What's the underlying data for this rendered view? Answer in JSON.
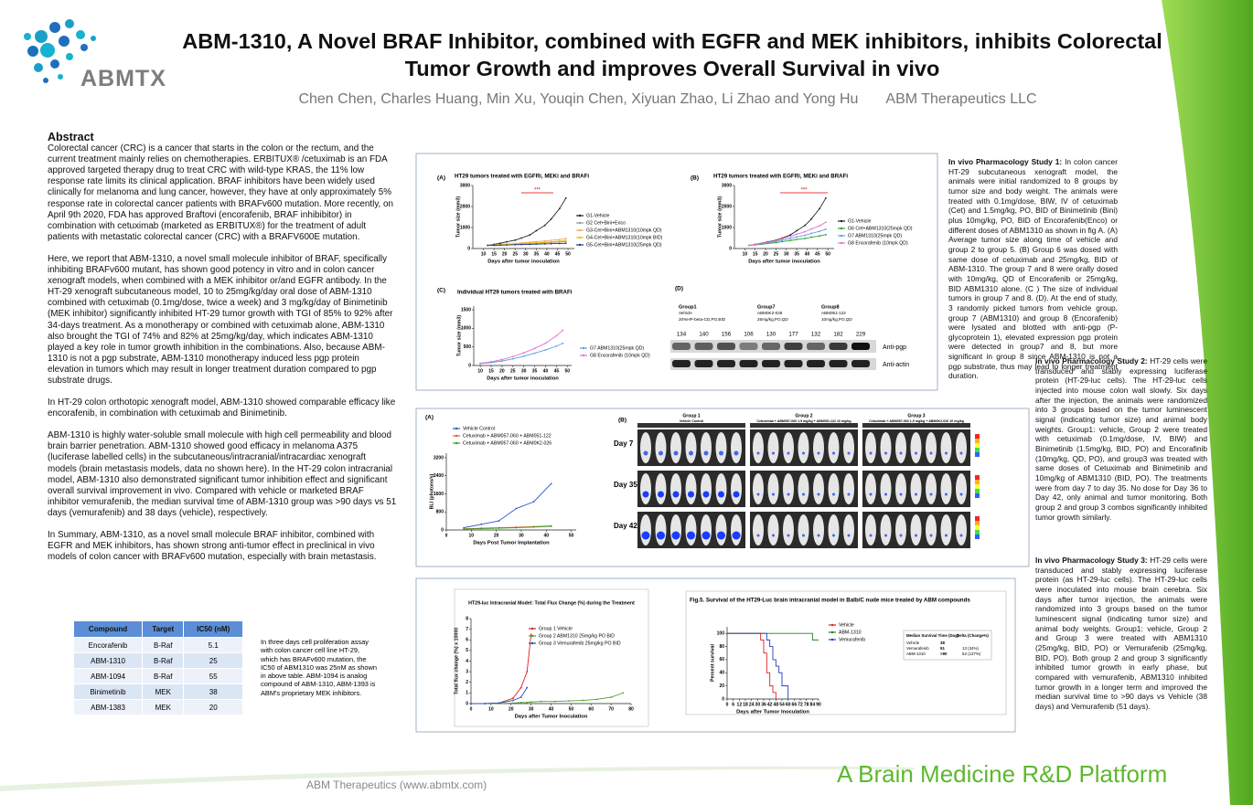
{
  "logo": "ABMTX",
  "header": {
    "title": "ABM-1310, A Novel BRAF Inhibitor, combined with EGFR and MEK inhibitors, inhibits Colorectal Tumor Growth and improves Overall Survival in vivo",
    "authors": "Chen Chen, Charles Huang, Min Xu, Youqin Chen, Xiyuan Zhao, Li Zhao and Yong Hu",
    "affiliation": "ABM Therapeutics LLC"
  },
  "abstract": {
    "heading": "Abstract",
    "paragraphs": [
      "Colorectal cancer (CRC) is a cancer that starts in the colon or the rectum, and the current treatment mainly relies on chemotherapies. ERBITUX® /cetuximab is an FDA approved targeted therapy drug to treat CRC with wild-type KRAS, the 11% low response rate limits its clinical application. BRAF inhibitors have been widely used clinically for melanoma and lung cancer, however, they have at only approximately 5% response rate in colorectal cancer patients with BRAFv600 mutation. More recently, on April 9th 2020, FDA has approved Braftovi (encorafenib, BRAF inhibibitor) in combination with cetuximab (marketed as ERBITUX®) for the treatment of adult patients with metastatic colorectal cancer (CRC) with a BRAFV600E mutation.",
      "Here, we report that ABM-1310, a novel small molecule inhibitor of BRAF, specifically inhibiting BRAFv600 mutant, has shown good potency in vitro and in colon cancer xenograft models, when combined with a MEK inhibitor or/and EGFR antibody. In the HT-29 xenograft subcutaneous model, 10 to 25mg/kg/day oral dose of ABM-1310 combined with cetuximab (0.1mg/dose, twice a week) and 3 mg/kg/day of Binimetinib (MEK inhibitor) significantly inhibited HT-29 tumor growth with TGI of 85% to 92% after 34-days treatment. As a monotherapy or combined with cetuximab alone, ABM-1310 also brought the TGI of 74% and 82% at 25mg/kg/day, which indicates ABM-1310 played a key role in tumor growth inhibition in the combinations. Also, because ABM-1310 is not a pgp substrate, ABM-1310 monotherapy induced less pgp protein elevation in tumors which may result in longer treatment duration compared to pgp substrate drugs.",
      "In HT-29 colon orthotopic xenograft model, ABM-1310 showed comparable efficacy like encorafenib, in combination with cetuximab and Binimetinib.",
      "ABM-1310 is highly water-soluble small molecule with high cell permeability and blood brain barrier penetration. ABM-1310 showed good efficacy in melanoma A375 (luciferase labelled cells) in the subcutaneous/intracranial/intracardiac xenograft models (brain metastasis models, data no shown here). In the HT-29 colon intracranial model, ABM-1310 also demonstrated significant tumor inhibition effect and significant overall survival improvement in vivo. Compared with vehicle or marketed BRAF inhibitor vemurafenib, the median survival time of ABM-1310 group was >90 days vs 51 days (vemurafenib) and 38 days (vehicle), respectively.",
      "In Summary, ABM-1310, as a novel small molecule BRAF inhibitor, combined with EGFR and MEK inhibitors, has shown strong anti-tumor effect in preclinical in vivo models of colon cancer with BRAFv600 mutation, especially with brain metastasis."
    ]
  },
  "table": {
    "columns": [
      "Compound",
      "Target",
      "IC50 (nM)"
    ],
    "rows": [
      [
        "Encorafenib",
        "B-Raf",
        "5.1"
      ],
      [
        "ABM-1310",
        "B-Raf",
        "25"
      ],
      [
        "ABM-1094",
        "B-Raf",
        "55"
      ],
      [
        "Binimetinib",
        "MEK",
        "38"
      ],
      [
        "ABM-1383",
        "MEK",
        "20"
      ]
    ],
    "note": "In three days cell proliferation assay with colon cancer cell line HT-29, which has BRAFv600 mutation, the IC50 of ABM1310 was 25nM as shown in above table. ABM-1094 is analog compound of ABM-1310, ABM-1393 is ABM's proprietary MEK inhibitors."
  },
  "studies": [
    {
      "label": "In vivo Pharmacology Study 1:",
      "text": "In colon cancer HT-29 subcutaneous xenograft model, the animals were initial randomized to 8 groups by tumor size and body weight. The animals were treated with 0.1mg/dose, BIW, IV of cetuximab (Cet) and 1.5mg/kg, PO, BID of Binimetinib (Bini) plus 10mg/kg, PO, BID of Encorafenib(Enco) or different doses of ABM1310 as shown in fig A. (A) Average tumor size along time of vehicle and group 2 to group 5. (B) Group 6 was dosed with same dose of cetuximab and 25mg/kg, BID of ABM-1310. The group 7 and 8 were orally dosed with 10mg/kg, QD of Encorafenib or 25mg/kg, BID ABM1310 alone. (C ) The size of individual tumors in group 7 and 8. (D). At the end of study, 3 randomly picked tumors from vehicle group, group 7 (ABM1310) and group 8 (Encorafenib) were lysated and blotted with anti-pgp (P-glycoprotein 1), elevated expression pgp protein were detected in group7 and 8, but more significant in group 8 since ABM-1310 is not a pgp substrate, thus may lead to longer treatment duration."
    },
    {
      "label": "In vivo Pharmacology Study 2:",
      "text": "HT-29 cells were transduced and stably expressing luciferase protein (HT-29-luc cells). The HT-29-luc cells injected into mouse colon wall slowly. Six days after the injection, the animals were randomized into 3 groups based on the tumor luminescent signal (indicating tumor size) and animal body weights. Group1: vehicle, Group 2 were treated with cetuximab (0.1mg/dose, IV, BIW) and Binimetinib (1.5mg/kg, BID, PO) and Encorafinib (10mg/kg, QD, PO), and group3 was treated with same doses of Cetuximab and Binimetinib and 10mg/kg of ABM1310 (BID, PO). The treatments were from day 7 to day 35. No dose for Day 36 to Day 42, only animal and tumor monitoring. Both group 2 and group 3 combos significantly inhibited tumor growth similarly."
    },
    {
      "label": "In vivo Pharmacology Study 3:",
      "text": "HT-29 cells were transduced and stably expressing luciferase protein (as HT-29-luc cells). The HT-29-luc cells were inoculated into mouse brain cerebra. Six days after tumor injection, the animals were randomized into 3 groups based on the tumor luminescent signal (indicating tumor size) and animal body weights. Group1: vehicle, Group 2 and Group 3 were treated with ABM1310 (25mg/kg, BID, PO) or Vemurafenib (25mg/kg, BID, PO). Both group 2 and group 3 significantly inhibited tumor growth in early phase, but compared with vemurafenib, ABM1310 inhibited tumor growth in a longer term and improved the median survival time to >90 days vs Vehicle (38 days) and Vemurafenib (51 days)."
    }
  ],
  "chart_data": [
    {
      "type": "line",
      "panel": "(A)",
      "title": "HT29 tumors treated with EGFRi, MEKi and BRAFi",
      "xlabel": "Days after tumor inoculation",
      "ylabel": "Tumor size (mm3)",
      "annotation": "***",
      "x": [
        12,
        15,
        18,
        21,
        25,
        28,
        32,
        35,
        39,
        42,
        46,
        49
      ],
      "xlim": [
        5,
        53
      ],
      "xticks": [
        10,
        15,
        20,
        25,
        30,
        35,
        40,
        45,
        50
      ],
      "ylim": [
        0,
        3000
      ],
      "yticks": [
        0,
        1000,
        2000,
        3000
      ],
      "series": [
        {
          "name": "G1-Vehicle",
          "color": "#222222",
          "values": [
            150,
            200,
            250,
            320,
            400,
            500,
            650,
            850,
            1100,
            1400,
            1900,
            2400
          ]
        },
        {
          "name": "G2 Cet+Bini+Enco",
          "color": "#999999",
          "values": [
            150,
            160,
            170,
            180,
            200,
            220,
            230,
            250,
            270,
            290,
            310,
            330
          ]
        },
        {
          "name": "G3-Cet+Bini+ABM1310(10mpk QD)",
          "color": "#f4a460",
          "values": [
            150,
            170,
            190,
            210,
            240,
            270,
            300,
            330,
            360,
            390,
            430,
            470
          ]
        },
        {
          "name": "G4-Cet+Bini+ABM1310(10mpk BID)",
          "color": "#e8c000",
          "values": [
            150,
            160,
            180,
            200,
            220,
            240,
            260,
            280,
            300,
            320,
            350,
            380
          ]
        },
        {
          "name": "G5-Cet+Bini+ABM1310(25mpk QD)",
          "color": "#1f3c88",
          "values": [
            150,
            150,
            160,
            170,
            180,
            190,
            200,
            210,
            220,
            230,
            240,
            250
          ]
        }
      ]
    },
    {
      "type": "line",
      "panel": "(B)",
      "title": "HT29 tumors treated with EGFRi, MEKi and BRAFi",
      "xlabel": "Days after tumor inoculation",
      "ylabel": "Tumor size (mm3)",
      "annotation": "***",
      "x": [
        12,
        15,
        18,
        21,
        25,
        28,
        32,
        35,
        39,
        42,
        46,
        49
      ],
      "xlim": [
        5,
        53
      ],
      "xticks": [
        10,
        15,
        20,
        25,
        30,
        35,
        40,
        45,
        50
      ],
      "ylim": [
        0,
        3000
      ],
      "yticks": [
        0,
        1000,
        2000,
        3000
      ],
      "series": [
        {
          "name": "G1-Vehicle",
          "color": "#222222",
          "values": [
            150,
            200,
            250,
            320,
            400,
            500,
            650,
            850,
            1100,
            1400,
            1900,
            2400
          ]
        },
        {
          "name": "G6 Cet+ABM1310(25mpk QD)",
          "color": "#2ca02c",
          "values": [
            150,
            170,
            200,
            240,
            280,
            330,
            380,
            430,
            480,
            540,
            600,
            660
          ]
        },
        {
          "name": "G7 ABM1310(25mpk QD)",
          "color": "#5aa0e0",
          "values": [
            150,
            180,
            220,
            270,
            330,
            400,
            470,
            550,
            630,
            720,
            820,
            920
          ]
        },
        {
          "name": "G8 Encorafenib (10mpk QD)",
          "color": "#e070d0",
          "values": [
            150,
            190,
            240,
            300,
            380,
            470,
            570,
            680,
            800,
            930,
            1080,
            1250
          ]
        }
      ]
    },
    {
      "type": "line",
      "panel": "(C)",
      "title": "Individual HT29 tumors treated with BRAFi",
      "xlabel": "Days after tumor inoculation",
      "ylabel": "Tumor size (mm3)",
      "x": [
        10,
        15,
        20,
        25,
        30,
        35,
        40,
        45,
        48
      ],
      "xlim": [
        7,
        52
      ],
      "xticks": [
        10,
        15,
        20,
        25,
        30,
        35,
        40,
        45,
        50
      ],
      "ylim": [
        0,
        1600
      ],
      "yticks": [
        0,
        500,
        1000,
        1500
      ],
      "series": [
        {
          "name": "G7 ABM1310(25mpk QD)",
          "color": "#5aa0e0",
          "values": [
            50,
            80,
            120,
            180,
            250,
            330,
            420,
            520,
            600
          ]
        },
        {
          "name": "G8 Encorafenib (10mpk QD)",
          "color": "#e070d0",
          "values": [
            60,
            100,
            160,
            240,
            340,
            460,
            600,
            800,
            950
          ]
        }
      ]
    },
    {
      "type": "line",
      "panel": "(A)",
      "xlabel": "Days Post Tumor Implantation",
      "ylabel": "BLI (photons/s)",
      "x": [
        7,
        14,
        21,
        28,
        35,
        42
      ],
      "xlim": [
        0,
        52
      ],
      "xticks": [
        0,
        10,
        20,
        30,
        40,
        50
      ],
      "ylim": [
        0,
        3400
      ],
      "yticks": [
        0,
        800,
        1600,
        2400,
        3200
      ],
      "series": [
        {
          "name": "Vehicle Control",
          "color": "#3355cc",
          "values": [
            100,
            250,
            400,
            950,
            1250,
            2050
          ]
        },
        {
          "name": "Cetuximab + ABM057-060 + ABM051-122",
          "color": "#e06020",
          "values": [
            50,
            80,
            100,
            120,
            150,
            180
          ]
        },
        {
          "name": "Cetuximab + ABM057-060 + ABM0K2-026",
          "color": "#30a030",
          "values": [
            40,
            60,
            80,
            100,
            130,
            160
          ]
        }
      ]
    },
    {
      "type": "line",
      "title": "HT29-luc Intracranial Model: Total Flux Change (%) during the Treatment",
      "xlabel": "Days after Tumor Inoculation",
      "ylabel": "Total flux change (%) x 10000",
      "x": [
        0,
        7,
        14,
        21,
        25,
        28,
        30,
        35,
        42,
        49,
        56,
        63,
        70,
        76
      ],
      "xlim": [
        0,
        80
      ],
      "xticks": [
        0,
        10,
        20,
        30,
        40,
        50,
        60,
        70,
        80
      ],
      "ylim": [
        0,
        8
      ],
      "yticks": [
        0,
        1,
        2,
        3,
        4,
        5,
        6,
        7,
        8
      ],
      "series": [
        {
          "name": "Group 1 Vehicle",
          "color": "#e02020",
          "values": [
            0,
            0,
            0.05,
            0.5,
            1.5,
            3,
            6.5,
            null,
            null,
            null,
            null,
            null,
            null,
            null
          ]
        },
        {
          "name": "Group 2 ABM1310 25mg/kg PO BID",
          "color": "#50a030",
          "values": [
            0,
            0,
            0,
            0.05,
            0.1,
            0.1,
            0.15,
            0.2,
            0.2,
            0.25,
            0.3,
            0.4,
            0.6,
            1
          ]
        },
        {
          "name": "Group 3 Vemurafenib 25mg/kg PO BID",
          "color": "#2050c0",
          "values": [
            0,
            0,
            0.05,
            0.3,
            0.6,
            1.5,
            null,
            null,
            null,
            null,
            null,
            null,
            null,
            null
          ]
        }
      ]
    },
    {
      "type": "line",
      "drawstyle": "steps",
      "title": "Fig.5. Survival of the HT29-Luc brain intracranial model in Balb/C nude mice treated by ABM compounds",
      "xlabel": "Days after Tumor Inoculation",
      "ylabel": "Percent survival",
      "x": [
        0,
        6,
        12,
        18,
        24,
        30,
        33,
        36,
        39,
        42,
        45,
        48,
        51,
        54,
        60,
        66,
        72,
        78,
        84,
        90
      ],
      "xlim": [
        0,
        90
      ],
      "xticks": [
        0,
        6,
        12,
        18,
        24,
        30,
        36,
        42,
        48,
        54,
        60,
        66,
        72,
        78,
        84,
        90
      ],
      "ylim": [
        0,
        110
      ],
      "yticks": [
        0,
        20,
        40,
        60,
        80,
        100
      ],
      "series": [
        {
          "name": "Vehicle",
          "color": "#e02020",
          "values": [
            100,
            100,
            100,
            100,
            100,
            100,
            90,
            70,
            40,
            20,
            10,
            0,
            null,
            null,
            null,
            null,
            null,
            null,
            null,
            null
          ]
        },
        {
          "name": "ABM-1310",
          "color": "#208020",
          "values": [
            100,
            100,
            100,
            100,
            100,
            100,
            100,
            100,
            100,
            100,
            100,
            100,
            100,
            100,
            100,
            100,
            100,
            100,
            90,
            90
          ]
        },
        {
          "name": "Vemurafenib",
          "color": "#2040c0",
          "values": [
            100,
            100,
            100,
            100,
            100,
            100,
            100,
            100,
            90,
            80,
            60,
            50,
            40,
            20,
            0,
            null,
            null,
            null,
            null,
            null
          ]
        }
      ]
    }
  ],
  "survival_table": {
    "columns": [
      "Median Survival Time (Day)",
      "Delta (Change%)"
    ],
    "rows": [
      [
        "Vehicle",
        "38",
        ""
      ],
      [
        "Vemurafenib",
        "51",
        "13 (34%)"
      ],
      [
        "ABM-1310",
        ">90",
        "52 (137%)"
      ]
    ]
  },
  "blot": {
    "panel": "(D)",
    "groups": [
      [
        "Group1",
        "Vehicle",
        "20%HP-beta-CD,PO,BID"
      ],
      [
        "Group7",
        "ABM0K2-026",
        "25mg/kg,PO,QD"
      ],
      [
        "Group8",
        "ABM051-122",
        "10mg/kg,PO,QD"
      ]
    ],
    "values": [
      134,
      140,
      156,
      106,
      130,
      177,
      132,
      182,
      229
    ],
    "rows": [
      "Anti-pgp",
      "Anti-actin"
    ]
  },
  "imaging": {
    "panel": "(B)",
    "groups": [
      [
        "Group 1",
        "Vehicle Control"
      ],
      [
        "Group 2",
        "Cetuximab + ABM057-060 1.5 mg/kg + ABM051-122 10 mg/kg"
      ],
      [
        "Group 3",
        "Cetuximab + ABM057-060 1.5 mg/kg + ABM0K2-026 10 mg/kg"
      ]
    ],
    "days": [
      "Day 7",
      "Day 35",
      "Day 42"
    ]
  },
  "footer": {
    "website": "ABM Therapeutics  (www.abmtx.com)",
    "slogan": "A Brain Medicine R&D Platform"
  }
}
